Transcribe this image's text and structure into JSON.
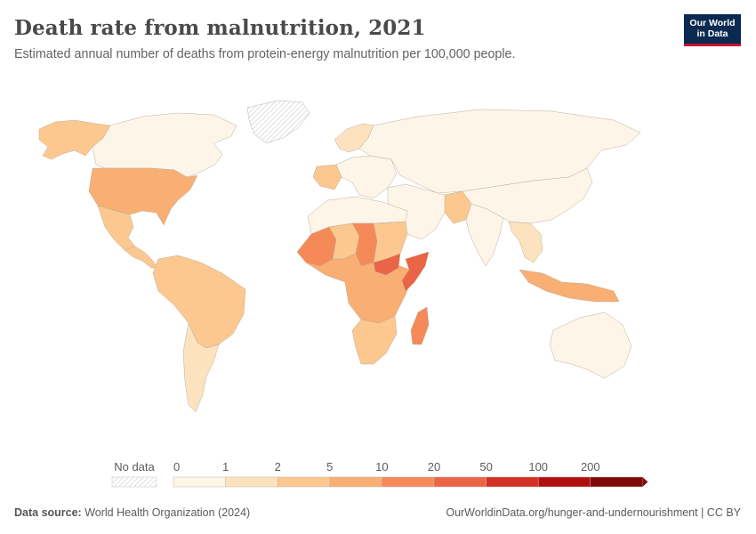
{
  "header": {
    "title": "Death rate from malnutrition, 2021",
    "subtitle": "Estimated annual number of deaths from protein-energy malnutrition per 100,000 people.",
    "logo_line1": "Our World",
    "logo_line2": "in Data"
  },
  "legend": {
    "no_data_label": "No data",
    "bins": [
      "0",
      "1",
      "2",
      "5",
      "10",
      "20",
      "50",
      "100",
      "200"
    ],
    "colors": [
      "#fef5e9",
      "#fde2bf",
      "#fcc88f",
      "#f9ae73",
      "#f58a58",
      "#eb6446",
      "#d43126",
      "#b10e0f",
      "#7f0a0a"
    ]
  },
  "map": {
    "bin_colors": {
      "b0": "#fef5e9",
      "b1": "#fde2bf",
      "b2": "#fcc88f",
      "b3": "#f9ae73",
      "b4": "#f58a58",
      "b5": "#eb6446",
      "b6": "#d43126",
      "b7": "#b10e0f",
      "b8": "#7f0a0a"
    },
    "regions": [
      {
        "name": "Alaska",
        "bin": "b2"
      },
      {
        "name": "Canada",
        "bin": "b0"
      },
      {
        "name": "Greenland",
        "bin": "none"
      },
      {
        "name": "United States",
        "bin": "b3"
      },
      {
        "name": "Mexico",
        "bin": "b2"
      },
      {
        "name": "Central America",
        "bin": "b2"
      },
      {
        "name": "South America",
        "bin": "b2"
      },
      {
        "name": "Southern Cone",
        "bin": "b1"
      },
      {
        "name": "Northern Europe",
        "bin": "b1"
      },
      {
        "name": "Western Europe",
        "bin": "b0"
      },
      {
        "name": "France",
        "bin": "b2"
      },
      {
        "name": "Russia & Central Asia",
        "bin": "b0"
      },
      {
        "name": "Middle East",
        "bin": "b0"
      },
      {
        "name": "Pakistan",
        "bin": "b2"
      },
      {
        "name": "India",
        "bin": "b0"
      },
      {
        "name": "China",
        "bin": "b0"
      },
      {
        "name": "Southeast Asia",
        "bin": "b1"
      },
      {
        "name": "Indonesia",
        "bin": "b3"
      },
      {
        "name": "Australia",
        "bin": "b0"
      },
      {
        "name": "North Africa",
        "bin": "b0"
      },
      {
        "name": "Mali",
        "bin": "b4"
      },
      {
        "name": "Niger",
        "bin": "b2"
      },
      {
        "name": "Chad",
        "bin": "b4"
      },
      {
        "name": "Sudan",
        "bin": "b2"
      },
      {
        "name": "Central Africa",
        "bin": "b3"
      },
      {
        "name": "Southern Africa",
        "bin": "b2"
      },
      {
        "name": "Madagascar",
        "bin": "b4"
      },
      {
        "name": "Somalia",
        "bin": "b5"
      },
      {
        "name": "South Sudan",
        "bin": "b5"
      }
    ]
  },
  "footer": {
    "source_label": "Data source:",
    "source_text": "World Health Organization (2024)",
    "url": "OurWorldinData.org/hunger-and-undernourishment | CC BY"
  }
}
